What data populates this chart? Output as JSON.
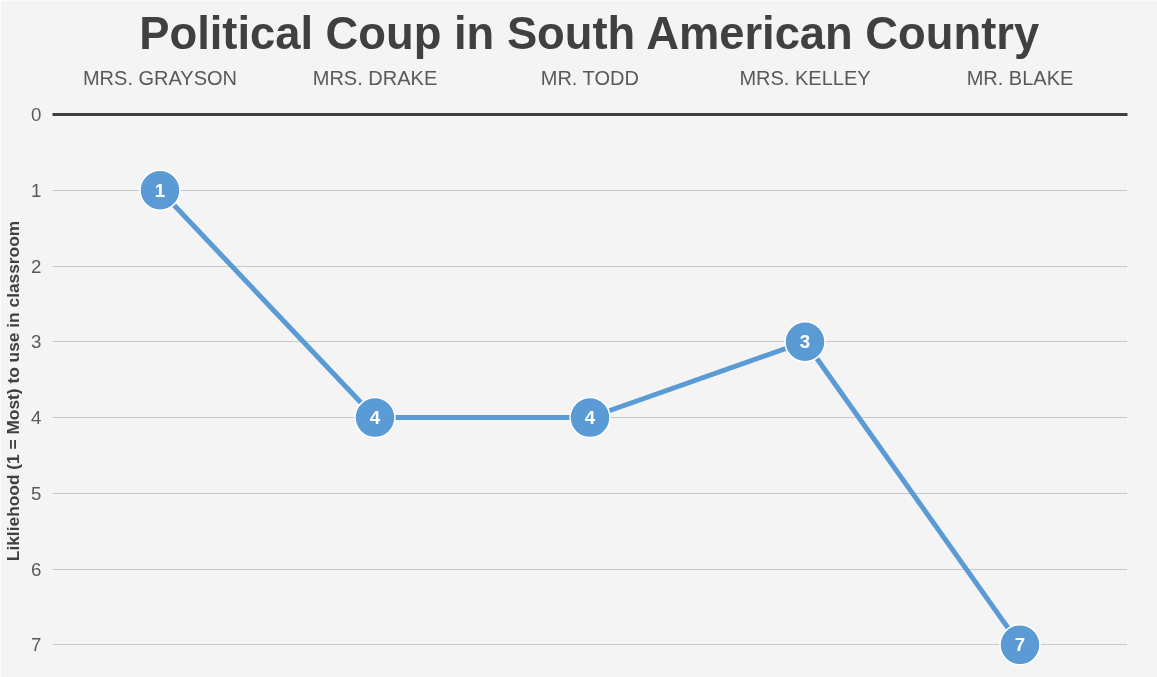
{
  "chart_data": {
    "type": "line",
    "title": "Political Coup in South American Country",
    "ylabel": "Likliehood (1 = Most) to use in classroom",
    "categories": [
      "MRS. GRAYSON",
      "MRS. DRAKE",
      "MR. TODD",
      "MRS. KELLEY",
      "MR. BLAKE"
    ],
    "series": [
      {
        "color": "#5b9bd5",
        "values": [
          1,
          4,
          4,
          3,
          7
        ]
      }
    ],
    "ylim": [
      7.3,
      0
    ],
    "yticks": [
      0,
      1,
      2,
      3,
      4,
      5,
      6,
      7
    ],
    "grid": "y",
    "marker": "circle",
    "line_style": "solid",
    "data_labels": true
  }
}
